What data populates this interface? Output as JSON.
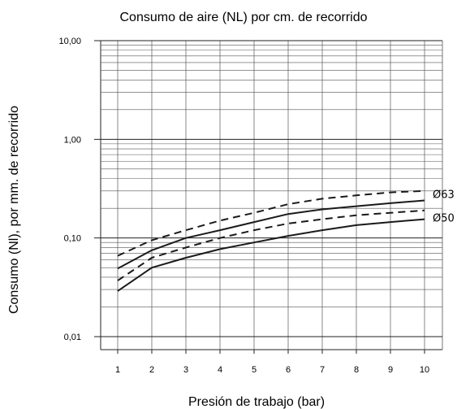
{
  "chart_data": {
    "type": "line",
    "title": "Consumo de aire (NL) por cm. de recorrido",
    "xlabel": "Presión de trabajo (bar)",
    "ylabel": "Consumo (Nl), por mm. de recorrido",
    "y_scale": "log",
    "xlim": [
      0.5,
      10.5
    ],
    "ylim": [
      0.01,
      10
    ],
    "grid": true,
    "x_ticks": [
      1,
      2,
      3,
      4,
      5,
      6,
      7,
      8,
      9,
      10
    ],
    "x_tick_labels": [
      "1",
      "2",
      "3",
      "4",
      "5",
      "6",
      "7",
      "8",
      "9",
      "10"
    ],
    "y_ticks": [
      0.01,
      0.1,
      1,
      10
    ],
    "y_tick_labels": [
      "0,01",
      "0,10",
      "1,00",
      "10,00"
    ],
    "x": [
      1,
      2,
      3,
      4,
      5,
      6,
      7,
      8,
      9,
      10
    ],
    "series": [
      {
        "group": "Ø63",
        "style": "dashed",
        "values": [
          0.066,
          0.095,
          0.12,
          0.15,
          0.18,
          0.22,
          0.25,
          0.27,
          0.29,
          0.3
        ]
      },
      {
        "group": "Ø63",
        "style": "solid",
        "values": [
          0.049,
          0.075,
          0.1,
          0.12,
          0.145,
          0.175,
          0.195,
          0.21,
          0.225,
          0.24
        ]
      },
      {
        "group": "Ø50",
        "style": "dashed",
        "values": [
          0.037,
          0.063,
          0.08,
          0.1,
          0.12,
          0.14,
          0.155,
          0.17,
          0.18,
          0.19
        ]
      },
      {
        "group": "Ø50",
        "style": "solid",
        "values": [
          0.029,
          0.05,
          0.063,
          0.077,
          0.09,
          0.105,
          0.12,
          0.135,
          0.145,
          0.155
        ]
      }
    ],
    "series_labels": [
      {
        "text": "Ø63",
        "value": 0.275
      },
      {
        "text": "Ø50",
        "value": 0.158
      }
    ],
    "colors": {
      "line": "#1a1a1a",
      "grid": "#555555"
    }
  }
}
